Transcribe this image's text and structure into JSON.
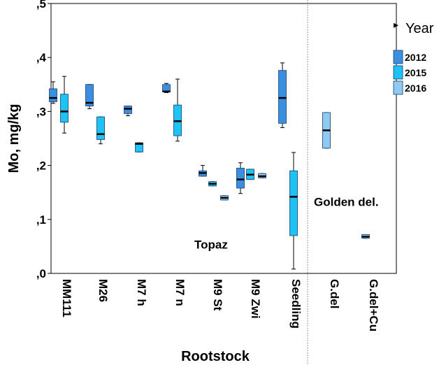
{
  "chart_data": {
    "type": "boxplot",
    "xlabel": "Rootstock",
    "ylabel": "Mo, mg/kg",
    "ylim": [
      0,
      0.5
    ],
    "yticks": [
      {
        "value": 0.0,
        "label": ",0"
      },
      {
        "value": 0.1,
        "label": ",1"
      },
      {
        "value": 0.2,
        "label": ",2"
      },
      {
        "value": 0.3,
        "label": ",3"
      },
      {
        "value": 0.4,
        "label": ",4"
      },
      {
        "value": 0.5,
        "label": ",5"
      }
    ],
    "categories": [
      "MM111",
      "M26",
      "M7 h",
      "M7 n",
      "M9 St",
      "M9 Zwi",
      "Seedling",
      "G.del",
      "G.del+Cu"
    ],
    "legend_title": "Year",
    "legend_position": "top-right",
    "series": [
      {
        "name": "2012",
        "color": "#3b8fe0",
        "boxes": [
          {
            "category": "MM111",
            "min": 0.315,
            "q1": 0.318,
            "median": 0.325,
            "q3": 0.342,
            "max": 0.355
          },
          {
            "category": "M26",
            "min": 0.305,
            "q1": 0.31,
            "median": 0.316,
            "q3": 0.35,
            "max": 0.35
          },
          {
            "category": "M7 h",
            "min": 0.292,
            "q1": 0.296,
            "median": 0.305,
            "q3": 0.31,
            "max": 0.31
          },
          {
            "category": "M7 n",
            "min": 0.335,
            "q1": 0.336,
            "median": 0.337,
            "q3": 0.35,
            "max": 0.352
          },
          {
            "category": "M9 St",
            "min": 0.18,
            "q1": 0.18,
            "median": 0.186,
            "q3": 0.19,
            "max": 0.2
          },
          {
            "category": "M9 Zwi",
            "min": 0.148,
            "q1": 0.158,
            "median": 0.174,
            "q3": 0.195,
            "max": 0.205
          },
          {
            "category": "Seedling",
            "min": 0.27,
            "q1": 0.278,
            "median": 0.325,
            "q3": 0.376,
            "max": 0.39
          }
        ]
      },
      {
        "name": "2015",
        "color": "#1ec3f5",
        "boxes": [
          {
            "category": "MM111",
            "min": 0.26,
            "q1": 0.28,
            "median": 0.3,
            "q3": 0.332,
            "max": 0.365
          },
          {
            "category": "M26",
            "min": 0.24,
            "q1": 0.248,
            "median": 0.258,
            "q3": 0.29,
            "max": 0.29
          },
          {
            "category": "M7 h",
            "min": 0.225,
            "q1": 0.225,
            "median": 0.24,
            "q3": 0.242,
            "max": 0.242
          },
          {
            "category": "M7 n",
            "min": 0.245,
            "q1": 0.255,
            "median": 0.282,
            "q3": 0.312,
            "max": 0.36
          },
          {
            "category": "M9 St",
            "min": 0.162,
            "q1": 0.162,
            "median": 0.166,
            "q3": 0.17,
            "max": 0.17
          },
          {
            "category": "M9 Zwi",
            "min": 0.174,
            "q1": 0.174,
            "median": 0.183,
            "q3": 0.193,
            "max": 0.193
          },
          {
            "category": "Seedling",
            "min": 0.008,
            "q1": 0.07,
            "median": 0.142,
            "q3": 0.19,
            "max": 0.224
          }
        ]
      },
      {
        "name": "2016",
        "color": "#8fcaf2",
        "boxes": [
          {
            "category": "M9 St",
            "min": 0.136,
            "q1": 0.136,
            "median": 0.14,
            "q3": 0.144,
            "max": 0.144
          },
          {
            "category": "M9 Zwi",
            "min": 0.177,
            "q1": 0.177,
            "median": 0.18,
            "q3": 0.185,
            "max": 0.185
          },
          {
            "category": "G.del",
            "min": 0.232,
            "q1": 0.232,
            "median": 0.265,
            "q3": 0.298,
            "max": 0.298
          },
          {
            "category": "G.del+Cu",
            "min": 0.065,
            "q1": 0.065,
            "median": 0.068,
            "q3": 0.072,
            "max": 0.072
          }
        ]
      }
    ],
    "annotations": [
      {
        "text": "Topaz",
        "x_category": "M9 St",
        "y": 0.046
      },
      {
        "text": "Golden del.",
        "x_category": "G.del",
        "y": 0.125
      }
    ]
  }
}
